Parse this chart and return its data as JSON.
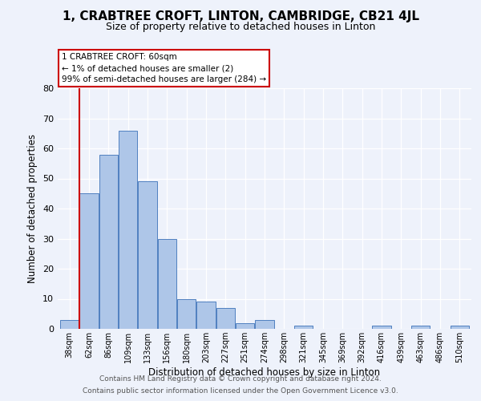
{
  "title": "1, CRABTREE CROFT, LINTON, CAMBRIDGE, CB21 4JL",
  "subtitle": "Size of property relative to detached houses in Linton",
  "xlabel": "Distribution of detached houses by size in Linton",
  "ylabel": "Number of detached properties",
  "bar_values": [
    3,
    45,
    58,
    66,
    49,
    30,
    10,
    9,
    7,
    2,
    3,
    0,
    1,
    0,
    0,
    0,
    1,
    0,
    1,
    0,
    1
  ],
  "bin_labels": [
    "38sqm",
    "62sqm",
    "86sqm",
    "109sqm",
    "133sqm",
    "156sqm",
    "180sqm",
    "203sqm",
    "227sqm",
    "251sqm",
    "274sqm",
    "298sqm",
    "321sqm",
    "345sqm",
    "369sqm",
    "392sqm",
    "416sqm",
    "439sqm",
    "463sqm",
    "486sqm",
    "510sqm"
  ],
  "bar_color": "#aec6e8",
  "bar_edge_color": "#5080c0",
  "highlight_color": "#cc0000",
  "annotation_line1": "1 CRABTREE CROFT: 60sqm",
  "annotation_line2": "← 1% of detached houses are smaller (2)",
  "annotation_line3": "99% of semi-detached houses are larger (284) →",
  "annotation_box_color": "#ffffff",
  "annotation_box_edge": "#cc0000",
  "ylim": [
    0,
    80
  ],
  "yticks": [
    0,
    10,
    20,
    30,
    40,
    50,
    60,
    70,
    80
  ],
  "background_color": "#eef2fb",
  "footer_line1": "Contains HM Land Registry data © Crown copyright and database right 2024.",
  "footer_line2": "Contains public sector information licensed under the Open Government Licence v3.0."
}
